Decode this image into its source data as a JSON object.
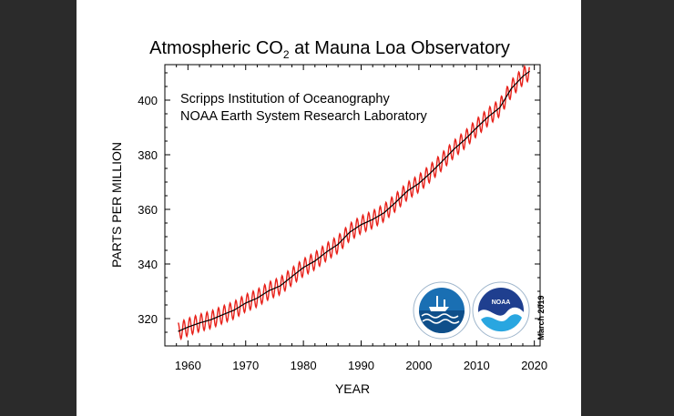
{
  "chart_data": {
    "type": "line",
    "title_main": "Atmospheric CO",
    "title_sub": "2",
    "title_rest": " at Mauna Loa Observatory",
    "credits": [
      "Scripps Institution of Oceanography",
      "NOAA Earth System Research Laboratory"
    ],
    "xlabel": "YEAR",
    "ylabel": "PARTS PER MILLION",
    "date_note": "March 2019",
    "xlim": [
      1956,
      2021
    ],
    "ylim": [
      310,
      413
    ],
    "xticks": [
      1960,
      1970,
      1980,
      1990,
      2000,
      2010,
      2020
    ],
    "yticks": [
      320,
      340,
      360,
      380,
      400
    ],
    "grid": false,
    "series": [
      {
        "color": "#e8221b",
        "seasonal_amplitude_ppm": 3.2,
        "description_points": []
      },
      {
        "color": "#000000",
        "x": [
          1958.3,
          1960,
          1962,
          1964,
          1966,
          1968,
          1970,
          1972,
          1974,
          1976,
          1978,
          1980,
          1982,
          1984,
          1986,
          1988,
          1990,
          1992,
          1994,
          1996,
          1998,
          2000,
          2002,
          2004,
          2006,
          2008,
          2010,
          2012,
          2014,
          2016,
          2018,
          2019.2
        ],
        "y": [
          315.3,
          316.9,
          318.4,
          319.6,
          321.4,
          323.1,
          325.7,
          327.5,
          330.2,
          332.0,
          335.4,
          338.7,
          341.1,
          344.4,
          347.2,
          351.6,
          354.4,
          356.3,
          358.8,
          362.6,
          366.7,
          369.5,
          373.3,
          377.5,
          381.9,
          385.6,
          389.9,
          393.9,
          397.2,
          404.2,
          408.7,
          410.6
        ]
      }
    ]
  },
  "logos": {
    "left": {
      "icon": "scripps-logo-icon",
      "text": "",
      "color": "#1a6fb3"
    },
    "right": {
      "icon": "noaa-logo-icon",
      "text": "NOAA",
      "color": "#1f3f8f"
    }
  }
}
